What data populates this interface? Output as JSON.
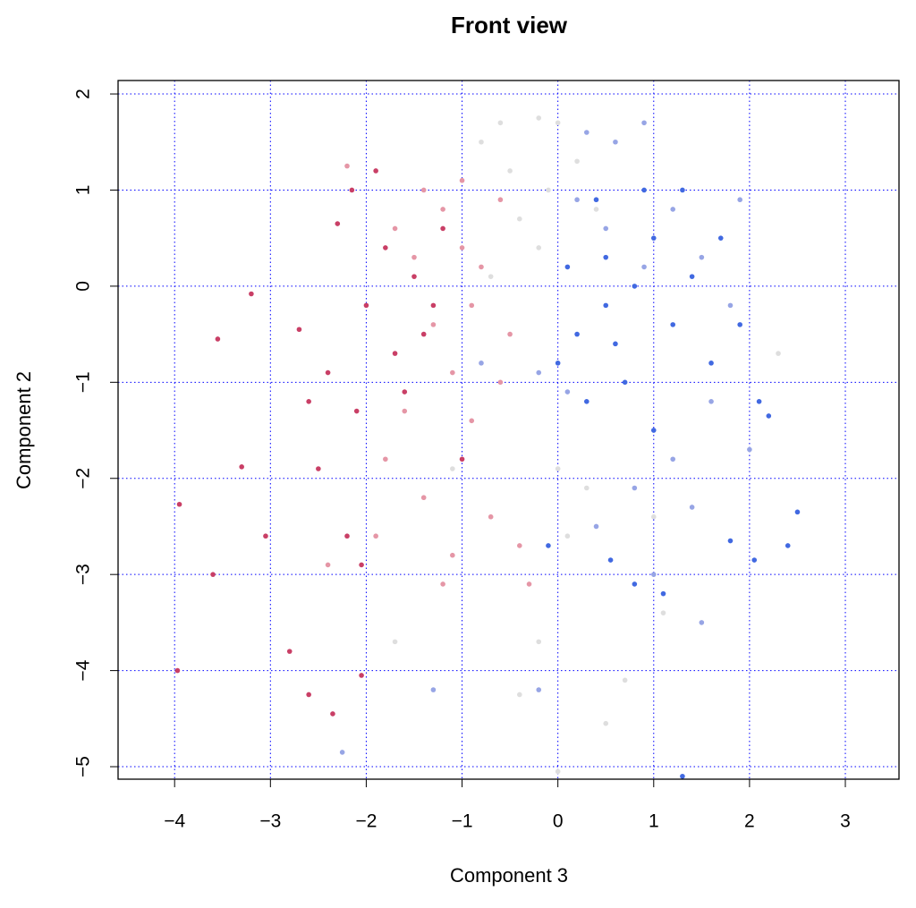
{
  "chart_data": {
    "type": "scatter",
    "title": "Front view",
    "x_label": "Component 3",
    "y_label": "Component 2",
    "xlim": [
      -4.59,
      3.56
    ],
    "ylim": [
      -5.13,
      2.14
    ],
    "xticks": [
      {
        "value": -4,
        "label": "−4"
      },
      {
        "value": -3,
        "label": "−3"
      },
      {
        "value": -2,
        "label": "−2"
      },
      {
        "value": -1,
        "label": "−1"
      },
      0,
      1,
      2,
      3
    ],
    "yticks": [
      {
        "value": -5,
        "label": "−5"
      },
      {
        "value": -4,
        "label": "−4"
      },
      {
        "value": -3,
        "label": "−3"
      },
      {
        "value": -2,
        "label": "−2"
      },
      {
        "value": -1,
        "label": "−1"
      },
      0,
      1,
      2
    ],
    "grid": true,
    "grid_color": "#0000ff",
    "series": [
      {
        "color": "#c93f66",
        "x": [
          -3.95,
          -3.97,
          -3.6,
          -3.55,
          -3.2,
          -3.3,
          -2.6,
          -2.35,
          -2.05,
          -2.2,
          -2.5,
          -2.7,
          -2.3,
          -2.0,
          -1.8,
          -1.5,
          -1.7,
          -2.1,
          -1.4,
          -1.2,
          -1.0,
          -2.8,
          -3.05,
          -2.15,
          -1.9,
          -2.6,
          -1.6,
          -2.4,
          -2.05,
          -1.3
        ],
        "values": [
          -2.27,
          -4,
          -3,
          -0.55,
          -0.08,
          -1.88,
          -4.25,
          -4.45,
          -4.05,
          -2.6,
          -1.9,
          -0.45,
          0.65,
          -0.2,
          0.4,
          0.1,
          -0.7,
          -1.3,
          -0.5,
          0.6,
          -1.8,
          -3.8,
          -2.6,
          1.0,
          1.2,
          -1.2,
          -1.1,
          -0.9,
          -2.9,
          -0.2
        ]
      },
      {
        "color": "#e596a6",
        "x": [
          -1.5,
          -1.2,
          -1.0,
          -0.8,
          -1.3,
          -1.1,
          -0.9,
          -1.6,
          -1.8,
          -1.4,
          -0.7,
          -0.4,
          -1.0,
          -0.6,
          -1.9,
          -2.2,
          -1.2,
          -0.5,
          -0.9,
          -1.4,
          -0.3,
          -2.4,
          -1.7,
          -0.6,
          -1.1
        ],
        "values": [
          0.3,
          0.8,
          0.4,
          0.2,
          -0.4,
          -0.9,
          -1.4,
          -1.3,
          -1.8,
          -2.2,
          -2.4,
          -2.7,
          1.1,
          0.9,
          -2.6,
          1.25,
          -3.1,
          -0.5,
          -0.2,
          1.0,
          -3.1,
          -2.9,
          0.6,
          -1.0,
          -2.8
        ]
      },
      {
        "color": "#dedede",
        "x": [
          -0.6,
          -0.2,
          0.0,
          -0.5,
          -0.1,
          -0.4,
          0.2,
          -0.8,
          -0.2,
          0.3,
          0.1,
          -0.4,
          0.5,
          0.7,
          -0.2,
          1.1,
          -1.7,
          -0.7,
          0.0,
          0.4,
          1.0,
          -1.1,
          2.3,
          0.0
        ],
        "values": [
          1.7,
          1.75,
          1.7,
          1.2,
          1.0,
          0.7,
          1.3,
          1.5,
          0.4,
          -2.1,
          -2.6,
          -4.25,
          -4.55,
          -4.1,
          -3.7,
          -3.4,
          -3.7,
          0.1,
          -1.9,
          0.8,
          -2.4,
          -1.9,
          -0.7,
          -5.05
        ]
      },
      {
        "color": "#97a5e5",
        "x": [
          0.3,
          0.6,
          0.9,
          0.2,
          0.5,
          1.2,
          1.5,
          1.8,
          1.6,
          1.2,
          0.8,
          0.4,
          -0.2,
          1.4,
          1.0,
          1.5,
          -0.2,
          -2.25,
          -0.8,
          0.9,
          1.9,
          2.0,
          0.1,
          -1.3
        ],
        "values": [
          1.6,
          1.5,
          1.7,
          0.9,
          0.6,
          0.8,
          0.3,
          -0.2,
          -1.2,
          -1.8,
          -2.1,
          -2.5,
          -0.9,
          -2.3,
          -3.0,
          -3.5,
          -4.2,
          -4.85,
          -0.8,
          0.2,
          0.9,
          -1.7,
          -1.1,
          -4.2
        ]
      },
      {
        "color": "#4169e1",
        "x": [
          0.2,
          0.5,
          0.8,
          1.0,
          0.3,
          0.0,
          0.7,
          1.2,
          1.4,
          0.5,
          0.9,
          1.3,
          1.7,
          1.9,
          2.1,
          2.2,
          2.5,
          2.4,
          2.05,
          1.8,
          1.3,
          0.55,
          0.8,
          -0.1,
          1.1,
          0.1,
          0.6,
          1.0,
          0.4,
          1.6
        ],
        "values": [
          -0.5,
          -0.2,
          0.0,
          0.5,
          -1.2,
          -0.8,
          -1.0,
          -0.4,
          0.1,
          0.3,
          1.0,
          1.0,
          0.5,
          -0.4,
          -1.2,
          -1.35,
          -2.35,
          -2.7,
          -2.85,
          -2.65,
          -5.1,
          -2.85,
          -3.1,
          -2.7,
          -3.2,
          0.2,
          -0.6,
          -1.5,
          0.9,
          -0.8
        ]
      }
    ]
  }
}
